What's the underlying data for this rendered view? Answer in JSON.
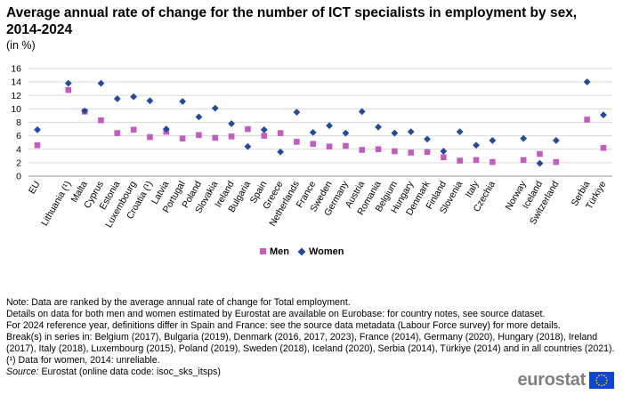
{
  "title": "Average annual rate of change for the number of ICT specialists in employment by sex, 2014-2024",
  "subtitle": "(in %)",
  "chart_data": {
    "type": "scatter",
    "categories": [
      "EU",
      "Lithuania (¹)",
      "Malta",
      "Cyprus",
      "Estonia",
      "Luxembourg",
      "Croatia (¹)",
      "Latvia",
      "Portugal",
      "Poland",
      "Slovakia",
      "Ireland",
      "Bulgaria",
      "Spain",
      "Greece",
      "Netherlands",
      "France",
      "Sweden",
      "Germany",
      "Austria",
      "Romania",
      "Belgium",
      "Hungary",
      "Denmark",
      "Finland",
      "Slovenia",
      "Italy",
      "Czechia",
      "Norway",
      "Iceland",
      "Switzerland",
      "Serbia",
      "Türkiye"
    ],
    "group_gaps_after": [
      "EU",
      "Czechia",
      "Switzerland"
    ],
    "series": [
      {
        "name": "Men",
        "color": "#c25dc0",
        "marker": "square",
        "values": [
          4.6,
          12.8,
          9.6,
          8.3,
          6.4,
          6.9,
          5.8,
          6.6,
          5.6,
          6.1,
          5.7,
          5.9,
          7.0,
          6.0,
          6.4,
          5.1,
          4.8,
          4.4,
          4.5,
          3.9,
          4.0,
          3.7,
          3.5,
          3.6,
          2.8,
          2.3,
          2.4,
          2.1,
          2.4,
          3.3,
          2.1,
          8.4,
          4.2
        ]
      },
      {
        "name": "Women",
        "color": "#264a9a",
        "marker": "diamond",
        "values": [
          6.9,
          13.8,
          9.7,
          13.8,
          11.5,
          11.8,
          11.2,
          7.0,
          11.1,
          8.8,
          10.1,
          7.8,
          4.4,
          6.9,
          3.6,
          9.5,
          6.5,
          7.5,
          6.4,
          9.6,
          7.3,
          6.4,
          6.6,
          5.5,
          3.7,
          6.6,
          4.6,
          5.3,
          5.6,
          1.9,
          5.3,
          14.0,
          9.1
        ]
      }
    ],
    "ylim": [
      0,
      16
    ],
    "yticks": [
      0,
      2,
      4,
      6,
      8,
      10,
      12,
      14,
      16
    ],
    "grid": true,
    "legend_position": "bottom"
  },
  "notes": [
    "Note: Data are ranked by the average annual rate of change for Total employment.",
    "Details on data for both men and women estimated by Eurostat are available on Eurobase: for country notes, see source dataset.",
    "For 2024 reference year, definitions differ in Spain and France: see the source data metadata (Labour Force survey) for more details.",
    "Break(s) in series in: Belgium (2017), Bulgaria (2019), Denmark (2016, 2017, 2023), France (2014), Germany (2020), Hungary (2018), Ireland (2017), Italy (2018), Luxembourg (2015), Poland (2019), Sweden (2018), Iceland (2020), Serbia (2014), Türkiye (2014) and in all countries (2021).",
    "(¹) Data for women, 2014: unreliable."
  ],
  "source": {
    "label": "Source:",
    "text": "Eurostat (online data code: isoc_sks_itsps)"
  },
  "brand": {
    "name": "eurostat",
    "flag_color": "#0e47cb",
    "star_color": "#ffcc00"
  }
}
